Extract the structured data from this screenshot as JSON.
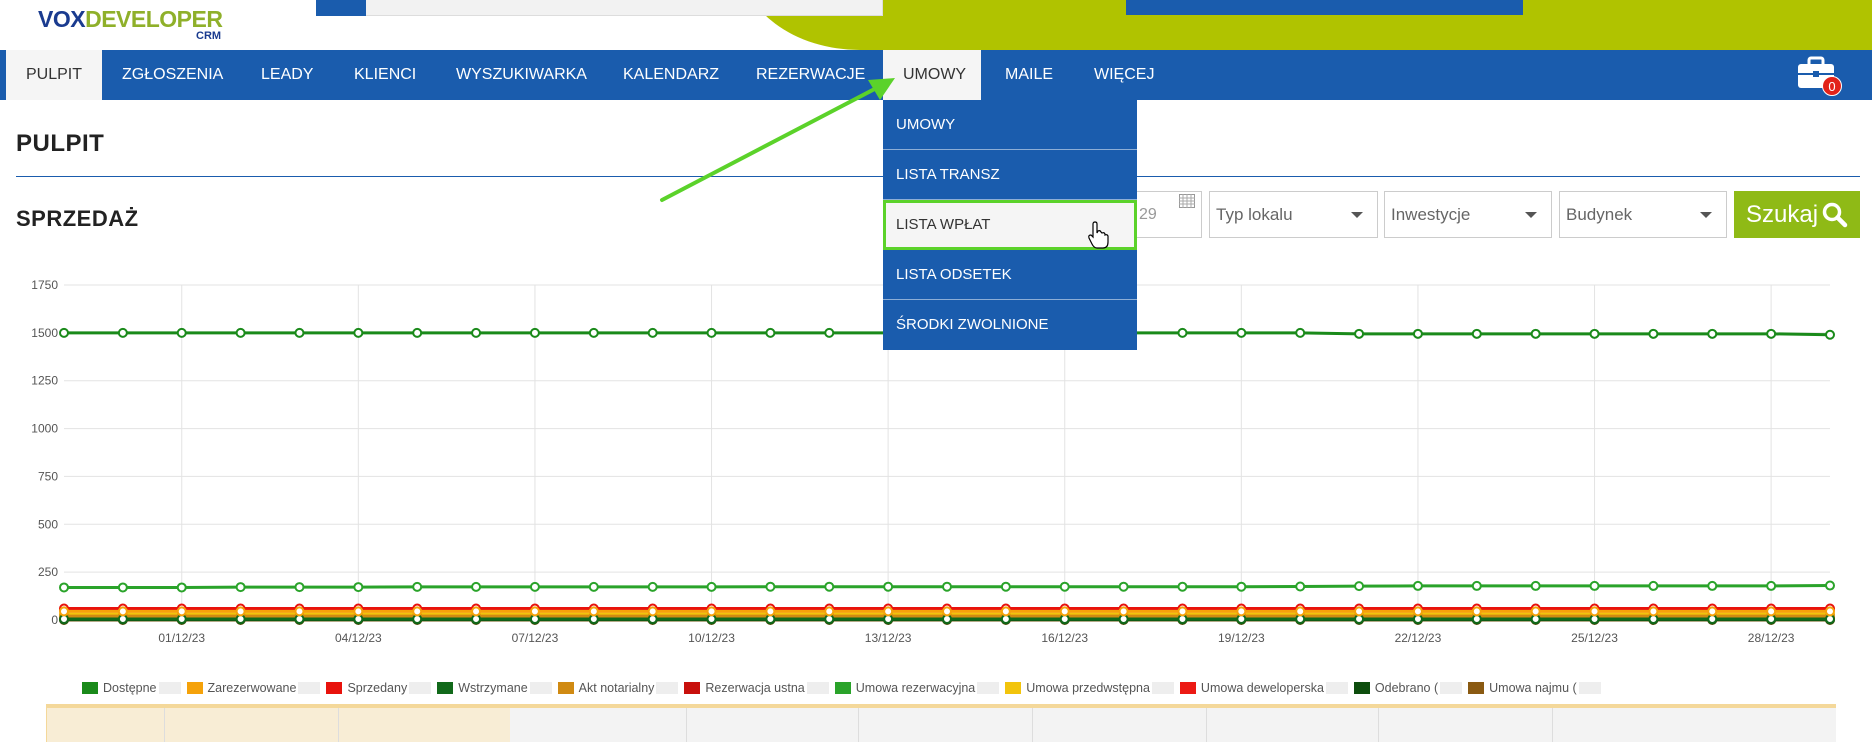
{
  "logo": {
    "part1": "VOX",
    "part2": "DEVELOPER",
    "crm": "CRM"
  },
  "nav": {
    "items": [
      {
        "label": "PULPIT",
        "state": "active"
      },
      {
        "label": "ZGŁOSZENIA"
      },
      {
        "label": "LEADY"
      },
      {
        "label": "KLIENCI"
      },
      {
        "label": "WYSZUKIWARKA"
      },
      {
        "label": "KALENDARZ"
      },
      {
        "label": "REZERWACJE"
      },
      {
        "label": "UMOWY",
        "state": "open"
      },
      {
        "label": "MAILE"
      },
      {
        "label": "WIĘCEJ"
      }
    ],
    "cart_count": "0"
  },
  "dropdown": {
    "items": [
      {
        "label": "UMOWY"
      },
      {
        "label": "LISTA TRANSZ"
      },
      {
        "label": "LISTA WPŁAT",
        "state": "hover"
      },
      {
        "label": "LISTA ODSETEK"
      },
      {
        "label": "ŚRODKI ZWOLNIONE"
      }
    ]
  },
  "page": {
    "title": "PULPIT",
    "section": "SPRZEDAŻ"
  },
  "filters": {
    "date_fragment": "29",
    "type_placeholder": "Typ lokalu",
    "investment_placeholder": "Inwestycje",
    "building_placeholder": "Budynek",
    "search_label": "Szukaj"
  },
  "colors": {
    "nav_bg": "#1a5cad",
    "accent_green": "#8fba16",
    "highlight_green": "#5bd22a"
  },
  "chart_data": {
    "type": "line",
    "ylim": [
      0,
      1750
    ],
    "yticks": [
      "0",
      "250",
      "500",
      "750",
      "1000",
      "1250",
      "1500",
      "1750"
    ],
    "x_tick_labels": [
      "01/12/23",
      "04/12/23",
      "07/12/23",
      "10/12/23",
      "13/12/23",
      "16/12/23",
      "19/12/23",
      "22/12/23",
      "25/12/23",
      "28/12/23"
    ],
    "x_dates": [
      "29/11/23",
      "30/11/23",
      "01/12/23",
      "02/12/23",
      "03/12/23",
      "04/12/23",
      "05/12/23",
      "06/12/23",
      "07/12/23",
      "08/12/23",
      "09/12/23",
      "10/12/23",
      "11/12/23",
      "12/12/23",
      "13/12/23",
      "14/12/23",
      "15/12/23",
      "16/12/23",
      "17/12/23",
      "18/12/23",
      "19/12/23",
      "20/12/23",
      "21/12/23",
      "22/12/23",
      "23/12/23",
      "24/12/23",
      "25/12/23",
      "26/12/23",
      "27/12/23",
      "28/12/23",
      "29/12/23"
    ],
    "series": [
      {
        "name": "Dostępne",
        "color": "#1a8a1a",
        "values": [
          1500,
          1500,
          1500,
          1500,
          1500,
          1500,
          1500,
          1500,
          1500,
          1500,
          1500,
          1500,
          1500,
          1500,
          1500,
          1500,
          1500,
          1500,
          1500,
          1500,
          1500,
          1500,
          1495,
          1495,
          1495,
          1495,
          1495,
          1495,
          1495,
          1495,
          1490
        ]
      },
      {
        "name": "Zarezerwowane",
        "color": "#f5a20a",
        "values": [
          45,
          45,
          45,
          45,
          45,
          45,
          45,
          45,
          45,
          45,
          45,
          45,
          45,
          45,
          45,
          45,
          45,
          45,
          45,
          45,
          45,
          45,
          45,
          45,
          45,
          45,
          45,
          45,
          45,
          45,
          45
        ]
      },
      {
        "name": "Sprzedany",
        "color": "#e8120c",
        "values": [
          60,
          60,
          60,
          60,
          60,
          60,
          60,
          60,
          60,
          60,
          60,
          60,
          60,
          60,
          60,
          60,
          60,
          60,
          60,
          60,
          60,
          60,
          60,
          60,
          60,
          60,
          60,
          60,
          60,
          60,
          60
        ]
      },
      {
        "name": "Wstrzymane",
        "color": "#11691a",
        "values": [
          5,
          5,
          5,
          5,
          5,
          5,
          5,
          5,
          5,
          5,
          5,
          5,
          5,
          5,
          5,
          5,
          5,
          5,
          5,
          5,
          5,
          5,
          5,
          5,
          5,
          5,
          5,
          5,
          5,
          5,
          5
        ]
      },
      {
        "name": "Akt notarialny",
        "color": "#d08a12",
        "values": [
          20,
          20,
          20,
          20,
          20,
          20,
          20,
          20,
          20,
          20,
          20,
          20,
          20,
          20,
          20,
          20,
          20,
          20,
          20,
          20,
          20,
          20,
          20,
          20,
          20,
          20,
          20,
          20,
          20,
          20,
          20
        ]
      },
      {
        "name": "Rezerwacja ustna",
        "color": "#c8100c",
        "values": [
          10,
          10,
          10,
          10,
          10,
          10,
          10,
          10,
          10,
          10,
          10,
          10,
          10,
          10,
          10,
          10,
          10,
          10,
          10,
          10,
          10,
          10,
          10,
          10,
          10,
          10,
          10,
          10,
          10,
          10,
          10
        ]
      },
      {
        "name": "Umowa rezerwacyjna",
        "color": "#2aa32a",
        "values": [
          170,
          170,
          170,
          172,
          172,
          172,
          173,
          173,
          173,
          173,
          173,
          173,
          174,
          174,
          174,
          174,
          174,
          174,
          174,
          174,
          174,
          175,
          177,
          178,
          178,
          178,
          178,
          178,
          178,
          178,
          180
        ]
      },
      {
        "name": "Umowa przedwstępna",
        "color": "#f2c40c",
        "values": [
          30,
          30,
          30,
          30,
          30,
          30,
          30,
          30,
          30,
          30,
          30,
          30,
          30,
          30,
          30,
          30,
          30,
          30,
          30,
          30,
          30,
          30,
          30,
          30,
          30,
          30,
          30,
          30,
          30,
          30,
          30
        ]
      },
      {
        "name": "Umowa deweloperska",
        "color": "#ec1a14",
        "values": [
          55,
          55,
          55,
          55,
          55,
          55,
          55,
          55,
          55,
          55,
          55,
          55,
          55,
          55,
          55,
          55,
          55,
          55,
          55,
          55,
          55,
          55,
          55,
          55,
          55,
          55,
          55,
          55,
          55,
          55,
          55
        ]
      },
      {
        "name": "Odebrano (",
        "color": "#0d4d0d",
        "values": [
          2,
          2,
          2,
          2,
          2,
          2,
          2,
          2,
          2,
          2,
          2,
          2,
          2,
          2,
          2,
          2,
          2,
          2,
          2,
          2,
          2,
          2,
          2,
          2,
          2,
          2,
          2,
          2,
          2,
          2,
          2
        ]
      },
      {
        "name": "Umowa najmu (",
        "color": "#8a5a12",
        "values": [
          0,
          0,
          0,
          0,
          0,
          0,
          0,
          0,
          0,
          0,
          0,
          0,
          0,
          0,
          0,
          0,
          0,
          0,
          0,
          0,
          0,
          0,
          0,
          0,
          0,
          0,
          0,
          0,
          0,
          0,
          0
        ]
      }
    ],
    "legend_suffix": [
      ")",
      ")",
      ")",
      ")",
      ")",
      ")",
      ")",
      ")",
      ")",
      ")",
      ")"
    ],
    "legend_position": "bottom",
    "grid": true
  }
}
